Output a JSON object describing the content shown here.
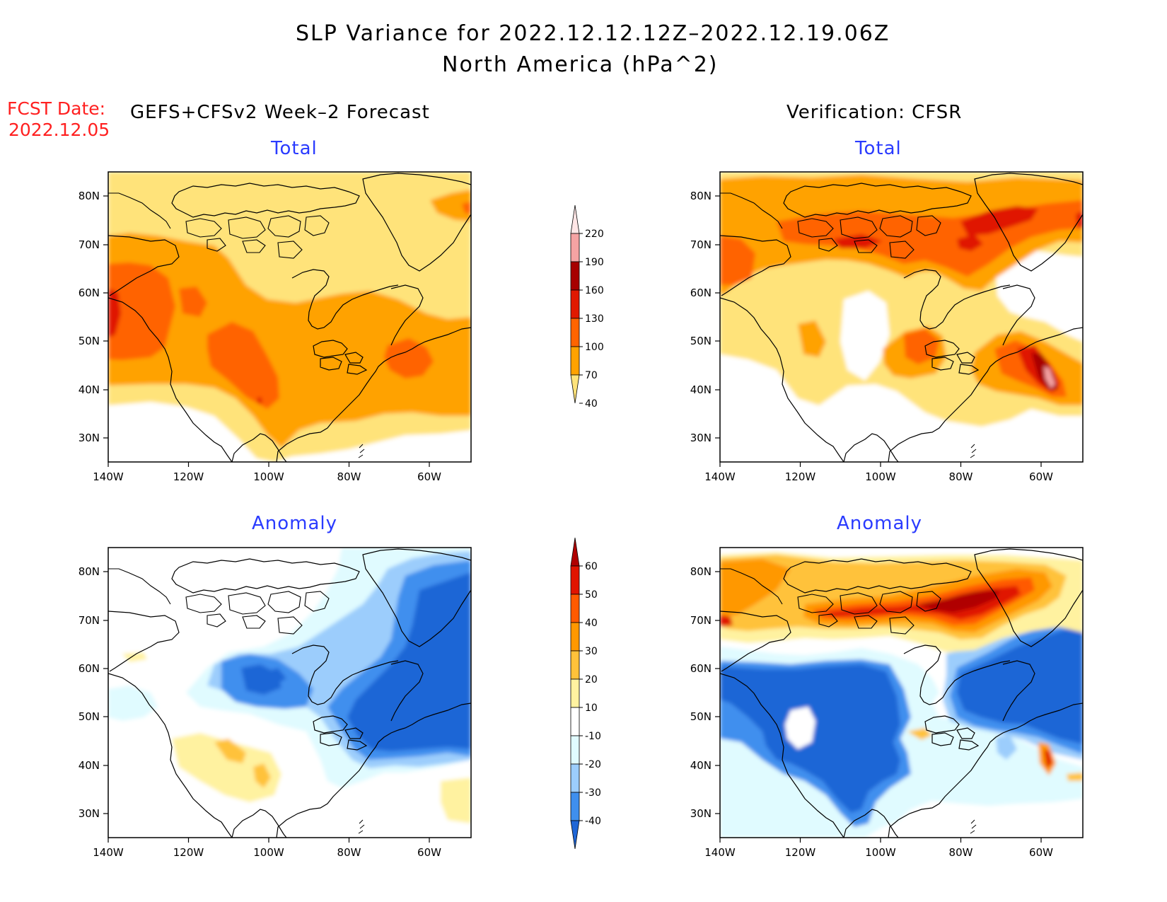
{
  "title": "SLP Variance for 2022.12.12.12Z–2022.12.19.06Z",
  "subtitle": "North America (hPa^2)",
  "fcst_label": "FCST Date:",
  "fcst_date": "2022.12.05",
  "left_header": "GEFS+CFSv2 Week–2 Forecast",
  "right_header": "Verification: CFSR",
  "panels": [
    {
      "id": "fc-total",
      "title": "Total",
      "type": "total"
    },
    {
      "id": "vf-total",
      "title": "Total",
      "type": "total"
    },
    {
      "id": "fc-anom",
      "title": "Anomaly",
      "type": "anomaly"
    },
    {
      "id": "vf-anom",
      "title": "Anomaly",
      "type": "anomaly"
    }
  ],
  "lon_ticks": [
    "140W",
    "120W",
    "100W",
    "80W",
    "60W"
  ],
  "lat_ticks": [
    "80N",
    "70N",
    "60N",
    "50N",
    "40N",
    "30N"
  ],
  "total_colorbar": {
    "levels": [
      "40",
      "70",
      "100",
      "130",
      "160",
      "190",
      "220"
    ],
    "colors": [
      "#ffe37a",
      "#ffa200",
      "#ff6400",
      "#e01900",
      "#a70000",
      "#f5a3a3",
      "#ffe6e6"
    ]
  },
  "anomaly_colorbar": {
    "levels": [
      "-40",
      "-30",
      "-20",
      "-10",
      "10",
      "20",
      "30",
      "40",
      "50",
      "60"
    ],
    "colors": [
      "#1f66d6",
      "#3f8fee",
      "#9ccdfc",
      "#e0fbff",
      "#ffffff",
      "#fff2a0",
      "#ffc23a",
      "#ff9800",
      "#ff5a00",
      "#e01400",
      "#b00000"
    ]
  },
  "chart_data": [
    {
      "type": "heatmap",
      "title": "Total",
      "panel": "GEFS+CFSv2 Week–2 Forecast",
      "units": "hPa^2",
      "xlim": [
        "140W",
        "50W"
      ],
      "ylim": [
        "25N",
        "85N"
      ],
      "regions": [
        {
          "value": "40-70",
          "area": "most of domain north of 35N"
        },
        {
          "value": "70-100",
          "area": "band 38N-62N west coast to Atlantic"
        },
        {
          "value": "100-130",
          "area": "NE Pacific 45-55N, western interior 38-50N, Gulf of St. Lawrence"
        },
        {
          "value": "<40",
          "area": "SW US and Mexico"
        }
      ]
    },
    {
      "type": "heatmap",
      "title": "Total",
      "panel": "Verification: CFSR",
      "units": "hPa^2",
      "xlim": [
        "140W",
        "50W"
      ],
      "ylim": [
        "25N",
        "85N"
      ],
      "regions": [
        {
          "value": "70-100",
          "area": "Arctic archipelago 65-80N"
        },
        {
          "value": "100-130",
          "area": "Beaufort to Greenland 70-75N, Great Lakes, NE US"
        },
        {
          "value": "130-160",
          "area": "Baffin Bay, Nova Scotia"
        },
        {
          "value": "190-220",
          "area": "Nova Scotia max near 60W 45N"
        },
        {
          "value": "<40",
          "area": "western interior, Labrador, SW US"
        }
      ]
    },
    {
      "type": "heatmap",
      "title": "Anomaly",
      "panel": "GEFS+CFSv2 Week–2 Forecast",
      "units": "hPa^2",
      "xlim": [
        "140W",
        "50W"
      ],
      "ylim": [
        "25N",
        "85N"
      ],
      "regions": [
        {
          "value": "-40 to -30",
          "area": "eastern Canada and N Atlantic 40-75N"
        },
        {
          "value": "-30 to -20",
          "area": "Hudson Bay west 52-60N"
        },
        {
          "value": "20-30",
          "area": "western US 38-45N near 110W"
        },
        {
          "value": "-10 to 10",
          "area": "west and south"
        }
      ]
    },
    {
      "type": "heatmap",
      "title": "Anomaly",
      "panel": "Verification: CFSR",
      "units": "hPa^2",
      "xlim": [
        "140W",
        "50W"
      ],
      "ylim": [
        "25N",
        "85N"
      ],
      "regions": [
        {
          "value": "40-60",
          "area": "Arctic 68-77N, 110W-70W"
        },
        {
          "value": "20-40",
          "area": "Alaska and Greenland coasts"
        },
        {
          "value": "-40 to -30",
          "area": "western N America 30-60N and NE Canada/Atlantic"
        },
        {
          "value": "30-50",
          "area": "Nova Scotia near 58W 42N"
        }
      ]
    }
  ]
}
